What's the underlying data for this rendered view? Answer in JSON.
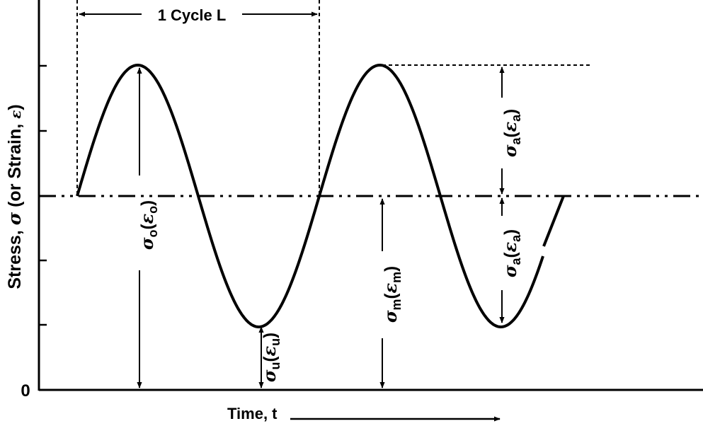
{
  "diagram": {
    "y_axis_label": {
      "part1": "Stress, ",
      "sigma": "σ",
      "part2": " (or Strain, ",
      "epsilon": "ε",
      "part3": ")"
    },
    "zero_label": "0",
    "x_axis_label": "Time, t",
    "cycle_label": "1 Cycle L",
    "labels": {
      "max_stress": {
        "sym": "σ",
        "sub": "o",
        "strain": "ε",
        "strain_sub": "o"
      },
      "min_stress": {
        "sym": "σ",
        "sub": "u",
        "strain": "ε",
        "strain_sub": "u"
      },
      "mean_stress": {
        "sym": "σ",
        "sub": "m",
        "strain": "ε",
        "strain_sub": "m"
      },
      "amplitude_upper": {
        "sym": "σ",
        "sub": "a",
        "strain": "ε",
        "strain_sub": "a"
      },
      "amplitude_lower": {
        "sym": "σ",
        "sub": "a",
        "strain": "ε",
        "strain_sub": "a"
      }
    }
  },
  "colors": {
    "ink": "#000000",
    "background": "#ffffff"
  }
}
